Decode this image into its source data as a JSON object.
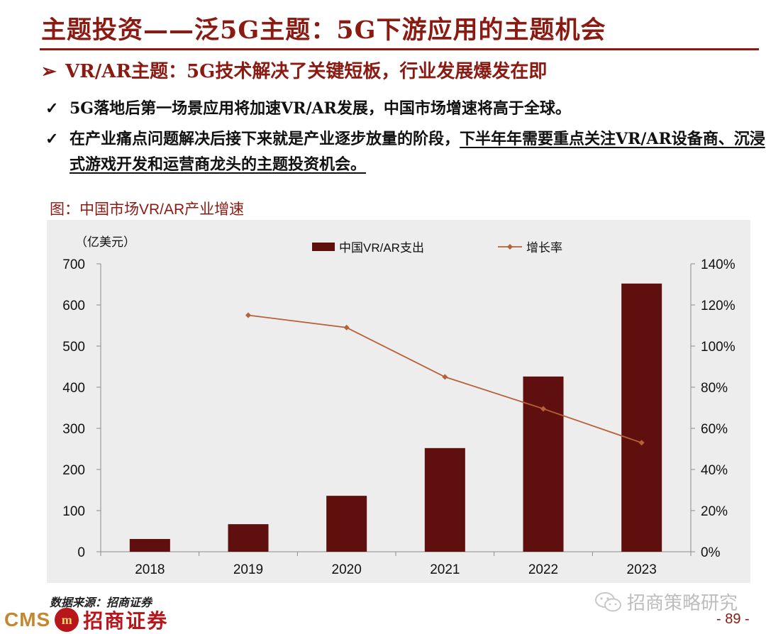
{
  "header": {
    "title": "主题投资——泛5G主题：5G下游应用的主题机会",
    "subtitle_arrow": "➢",
    "subtitle": "VR/AR主题：5G技术解决了关键短板，行业发展爆发在即"
  },
  "bullets": [
    {
      "mark": "✓",
      "text": "5G落地后第一场景应用将加速VR/AR发展，中国市场增速将高于全球。"
    },
    {
      "mark": "✓",
      "text_plain": "在产业痛点问题解决后接下来就是产业逐步放量的阶段，",
      "text_underlined": "下半年年需要重点关注VR/AR设备商、沉浸式游戏开发和运营商龙头的主题投资机会。"
    }
  ],
  "figure_caption": "图：中国市场VR/AR产业增速",
  "chart_data": {
    "type": "bar",
    "unit_label": "（亿美元）",
    "categories": [
      "2018",
      "2019",
      "2020",
      "2021",
      "2022",
      "2023"
    ],
    "series": [
      {
        "name": "中国VR/AR支出",
        "type": "bar",
        "axis": "left",
        "color": "#5f0f0d",
        "values": [
          31,
          67,
          136,
          252,
          426,
          652
        ]
      },
      {
        "name": "增长率",
        "type": "line",
        "axis": "right",
        "color": "#b5613a",
        "values": [
          null,
          1.15,
          1.09,
          0.85,
          0.695,
          0.53
        ]
      }
    ],
    "ylim_left": [
      0,
      700
    ],
    "yticks_left": [
      "0",
      "100",
      "200",
      "300",
      "400",
      "500",
      "600",
      "700"
    ],
    "ylim_right": [
      0,
      1.4
    ],
    "yticks_right": [
      "0%",
      "20%",
      "40%",
      "60%",
      "80%",
      "100%",
      "120%",
      "140%"
    ],
    "grid": false,
    "legend_position": "top"
  },
  "footer": {
    "source": "数据来源：招商证券",
    "logo_latin": "CMS",
    "logo_mark": "m",
    "logo_cn": "招商证券",
    "watermark": "招商策略研究",
    "page": "- 89 -"
  },
  "colors": {
    "brand": "#8b1a12",
    "bar": "#5f0f0d",
    "line": "#b5613a",
    "chart_bg": "#ededed"
  }
}
